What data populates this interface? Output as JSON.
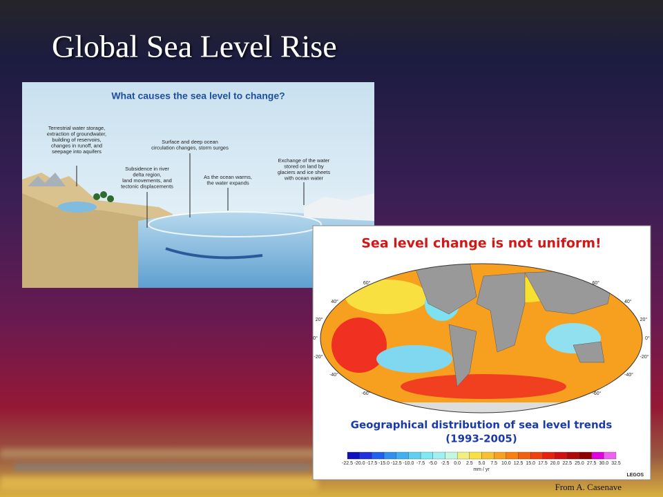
{
  "header": {
    "title": "Global Sea Level Rise"
  },
  "diagram": {
    "title": "What causes the sea level to change?",
    "labels": [
      [
        "Terrestrial water storage,",
        "extraction of groundwater,",
        "building of reservoirs,",
        "changes in runoff, and",
        "seepage into aquifers"
      ],
      [
        "Surface and deep ocean",
        "circulation changes, storm surges"
      ],
      [
        "Subsidence in river",
        "delta region,",
        "land movements, and",
        "tectonic displacements"
      ],
      [
        "As the ocean warms,",
        "the water expands"
      ],
      [
        "Exchange of the water",
        "stored on land by",
        "glaciers and ice sheets",
        "with ocean water"
      ]
    ]
  },
  "map": {
    "title": "Sea level change is not uniform!",
    "subtitle": "Geographical distribution of sea level trends",
    "period": "(1993-2005)",
    "lat_labels": [
      "60°",
      "40°",
      "20°",
      "0°",
      "-20°",
      "-40°",
      "-60°"
    ],
    "scale_labels": [
      "-22.5",
      "-20.0",
      "-17.5",
      "-15.0",
      "-12.5",
      "-10.0",
      "-7.5",
      "-5.0",
      "-2.5",
      "0.0",
      "2.5",
      "5.0",
      "7.5",
      "10.0",
      "12.5",
      "15.0",
      "17.5",
      "20.0",
      "22.5",
      "25.0",
      "27.5",
      "30.0",
      "32.5"
    ],
    "unit": "mm / yr",
    "logo": "LEGOS"
  },
  "footer": {
    "credit": "From A. Casenave"
  }
}
